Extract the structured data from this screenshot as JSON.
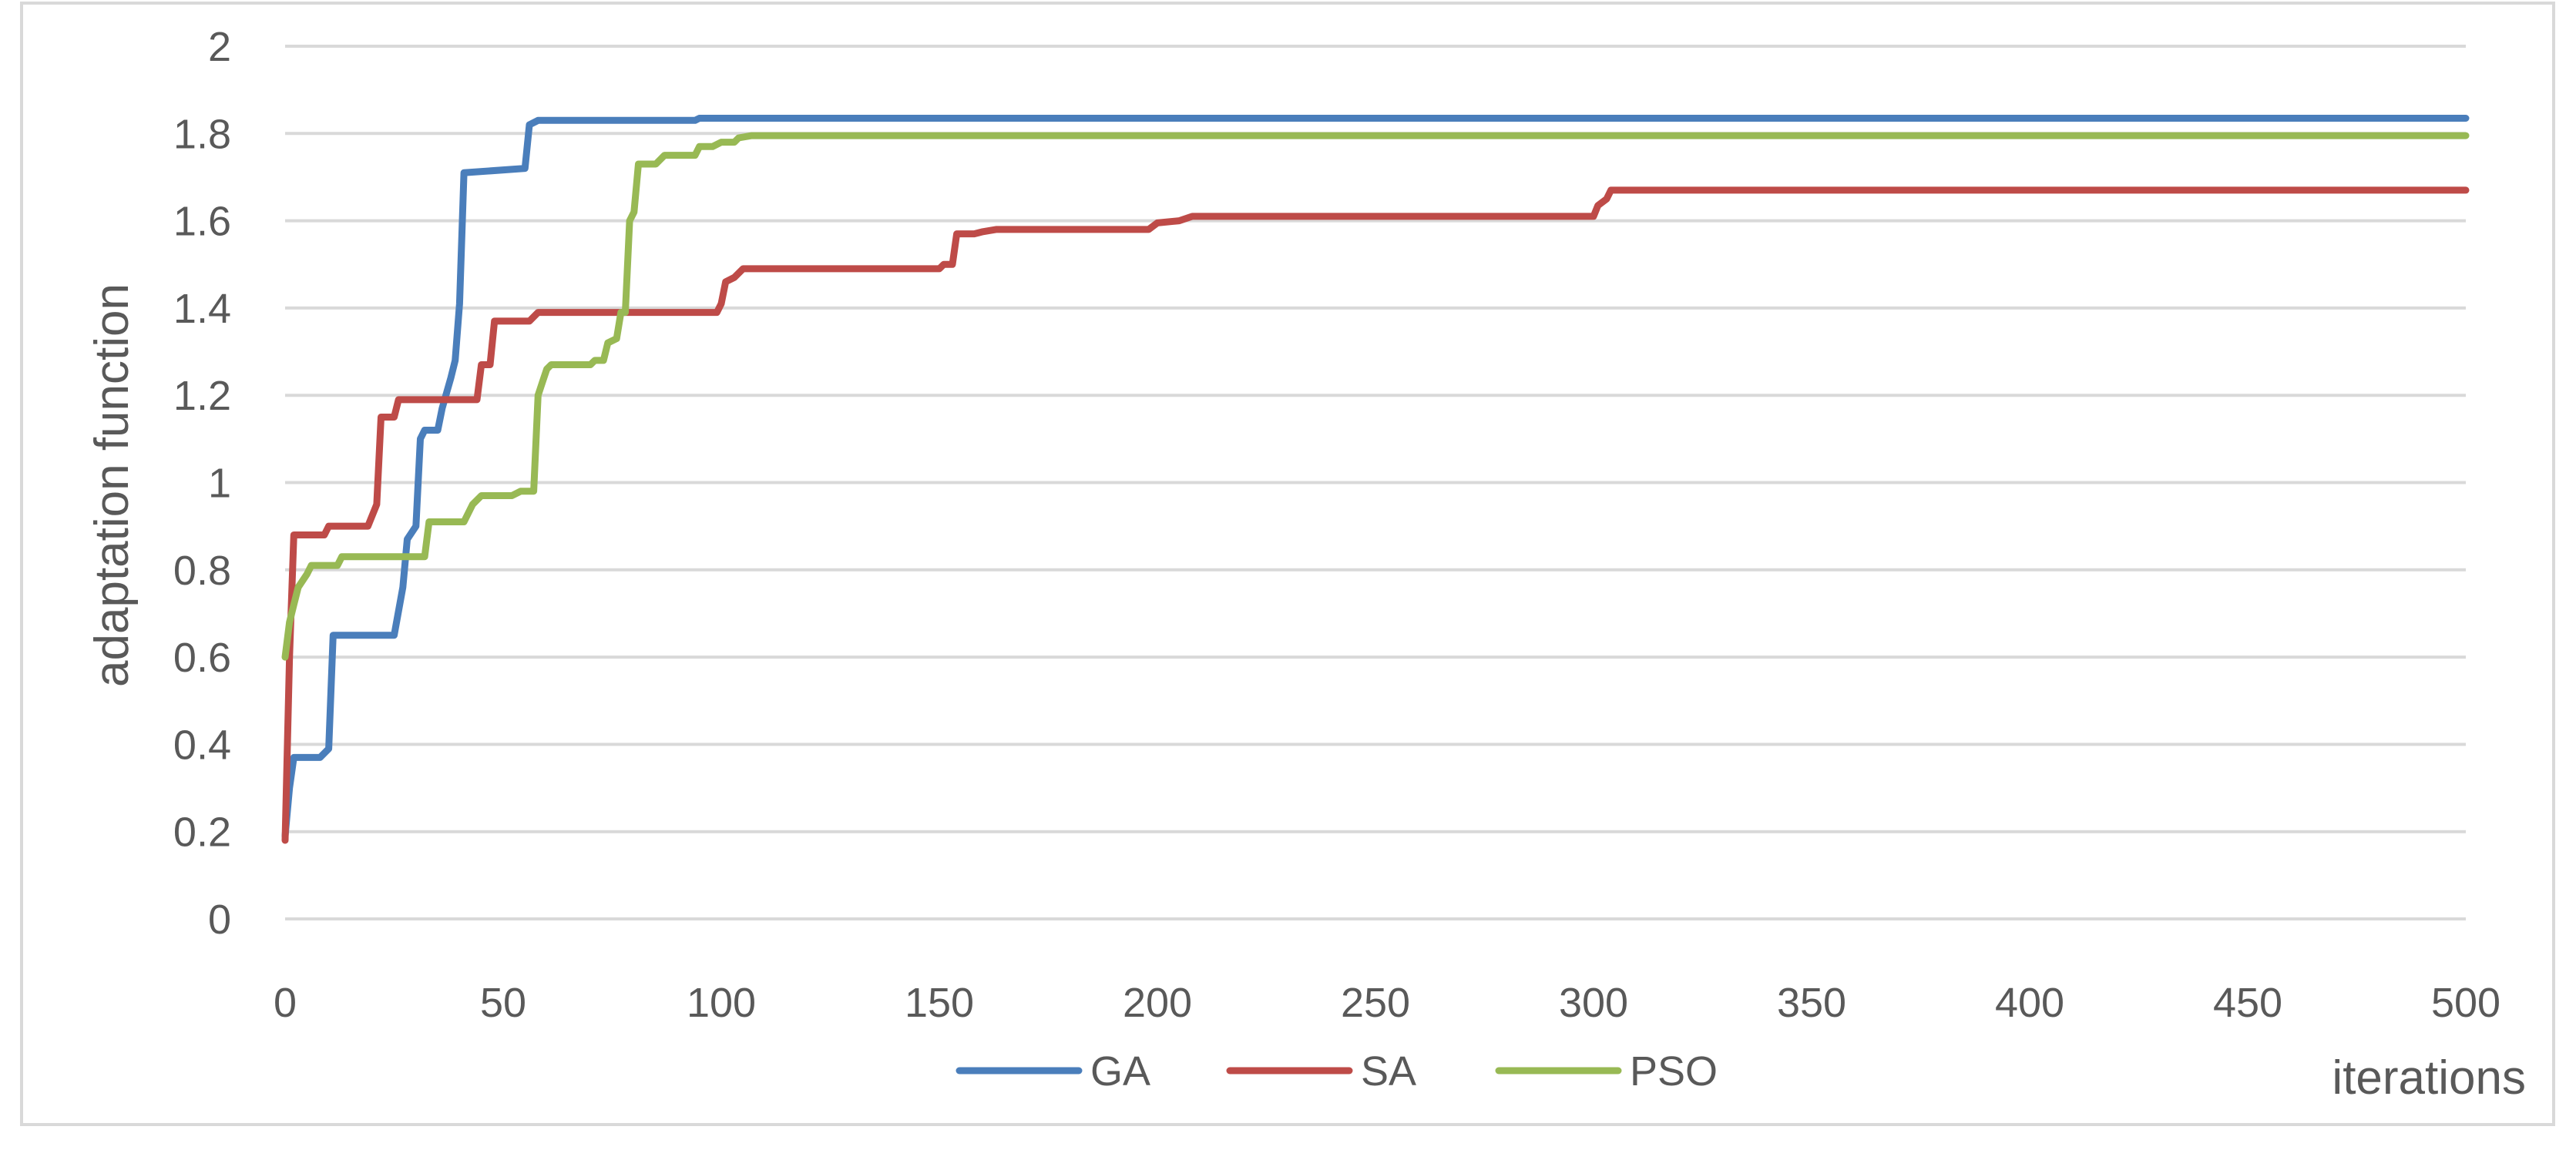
{
  "chart_data": {
    "type": "line",
    "title": "",
    "xlabel": "iterations",
    "ylabel": "adaptation function",
    "xlim": [
      0,
      500
    ],
    "ylim": [
      0,
      2
    ],
    "x_ticks": [
      0,
      50,
      100,
      150,
      200,
      250,
      300,
      350,
      400,
      450,
      500
    ],
    "y_ticks": [
      0,
      0.2,
      0.4,
      0.6,
      0.8,
      1,
      1.2,
      1.4,
      1.6,
      1.8,
      2
    ],
    "grid": "horizontal",
    "legend_position": "bottom",
    "series": [
      {
        "name": "GA",
        "color": "#4a7ebb",
        "points": [
          [
            0,
            0.19
          ],
          [
            1,
            0.3
          ],
          [
            2,
            0.37
          ],
          [
            8,
            0.37
          ],
          [
            10,
            0.39
          ],
          [
            11,
            0.65
          ],
          [
            25,
            0.65
          ],
          [
            27,
            0.76
          ],
          [
            28,
            0.87
          ],
          [
            30,
            0.9
          ],
          [
            31,
            1.1
          ],
          [
            32,
            1.12
          ],
          [
            35,
            1.12
          ],
          [
            36,
            1.17
          ],
          [
            38,
            1.24
          ],
          [
            39,
            1.28
          ],
          [
            40,
            1.41
          ],
          [
            41,
            1.71
          ],
          [
            55,
            1.72
          ],
          [
            56,
            1.82
          ],
          [
            58,
            1.83
          ],
          [
            94,
            1.83
          ],
          [
            95,
            1.835
          ],
          [
            500,
            1.835
          ]
        ]
      },
      {
        "name": "SA",
        "color": "#be4b48",
        "points": [
          [
            0,
            0.18
          ],
          [
            1,
            0.6
          ],
          [
            2,
            0.88
          ],
          [
            9,
            0.88
          ],
          [
            10,
            0.9
          ],
          [
            19,
            0.9
          ],
          [
            21,
            0.95
          ],
          [
            22,
            1.15
          ],
          [
            25,
            1.15
          ],
          [
            26,
            1.19
          ],
          [
            44,
            1.19
          ],
          [
            45,
            1.27
          ],
          [
            47,
            1.27
          ],
          [
            48,
            1.37
          ],
          [
            56,
            1.37
          ],
          [
            58,
            1.39
          ],
          [
            99,
            1.39
          ],
          [
            100,
            1.41
          ],
          [
            101,
            1.46
          ],
          [
            103,
            1.47
          ],
          [
            105,
            1.49
          ],
          [
            150,
            1.49
          ],
          [
            151,
            1.5
          ],
          [
            153,
            1.5
          ],
          [
            154,
            1.57
          ],
          [
            158,
            1.57
          ],
          [
            160,
            1.575
          ],
          [
            163,
            1.58
          ],
          [
            198,
            1.58
          ],
          [
            200,
            1.595
          ],
          [
            205,
            1.6
          ],
          [
            208,
            1.61
          ],
          [
            300,
            1.61
          ],
          [
            301,
            1.635
          ],
          [
            303,
            1.65
          ],
          [
            304,
            1.67
          ],
          [
            500,
            1.67
          ]
        ]
      },
      {
        "name": "PSO",
        "color": "#98b954",
        "points": [
          [
            0,
            0.6
          ],
          [
            1,
            0.68
          ],
          [
            2,
            0.72
          ],
          [
            3,
            0.76
          ],
          [
            5,
            0.79
          ],
          [
            6,
            0.81
          ],
          [
            12,
            0.81
          ],
          [
            13,
            0.83
          ],
          [
            32,
            0.83
          ],
          [
            33,
            0.91
          ],
          [
            41,
            0.91
          ],
          [
            43,
            0.95
          ],
          [
            45,
            0.97
          ],
          [
            52,
            0.97
          ],
          [
            54,
            0.98
          ],
          [
            57,
            0.98
          ],
          [
            58,
            1.2
          ],
          [
            59,
            1.23
          ],
          [
            60,
            1.26
          ],
          [
            61,
            1.27
          ],
          [
            70,
            1.27
          ],
          [
            71,
            1.28
          ],
          [
            73,
            1.28
          ],
          [
            74,
            1.32
          ],
          [
            76,
            1.33
          ],
          [
            77,
            1.39
          ],
          [
            78,
            1.39
          ],
          [
            79,
            1.6
          ],
          [
            80,
            1.62
          ],
          [
            81,
            1.73
          ],
          [
            85,
            1.73
          ],
          [
            87,
            1.75
          ],
          [
            94,
            1.75
          ],
          [
            95,
            1.77
          ],
          [
            98,
            1.77
          ],
          [
            100,
            1.78
          ],
          [
            103,
            1.78
          ],
          [
            104,
            1.79
          ],
          [
            107,
            1.795
          ],
          [
            500,
            1.795
          ]
        ]
      }
    ]
  }
}
